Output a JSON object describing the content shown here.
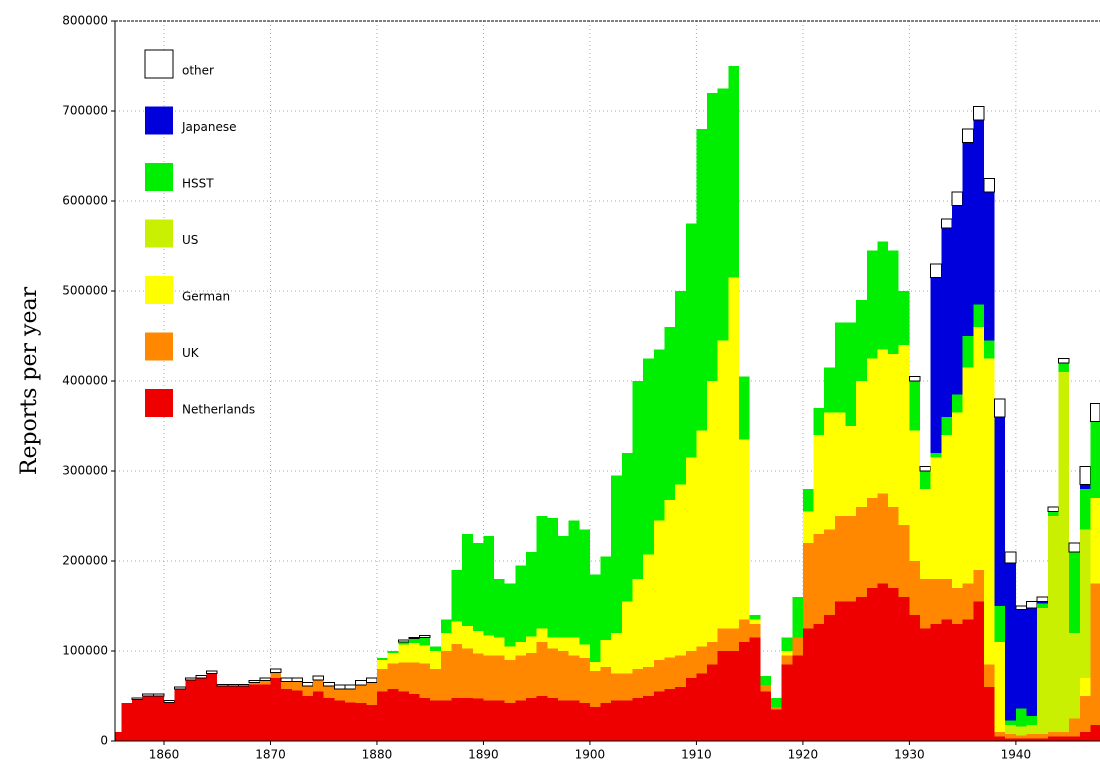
{
  "chart_data": {
    "type": "stacked-step-bar",
    "ylabel": "Reports per year",
    "xlim": [
      1855.4,
      1947.9
    ],
    "ylim": [
      0,
      800000
    ],
    "xticks": [
      1860,
      1870,
      1880,
      1890,
      1900,
      1910,
      1920,
      1930,
      1940
    ],
    "yticks": [
      0,
      100000,
      200000,
      300000,
      400000,
      500000,
      600000,
      700000,
      800000
    ],
    "grid": true,
    "legend": "upper left",
    "x": [
      1855,
      1856,
      1857,
      1858,
      1859,
      1860,
      1861,
      1862,
      1863,
      1864,
      1865,
      1866,
      1867,
      1868,
      1869,
      1870,
      1871,
      1872,
      1873,
      1874,
      1875,
      1876,
      1877,
      1878,
      1879,
      1880,
      1881,
      1882,
      1883,
      1884,
      1885,
      1886,
      1887,
      1888,
      1889,
      1890,
      1891,
      1892,
      1893,
      1894,
      1895,
      1896,
      1897,
      1898,
      1899,
      1900,
      1901,
      1902,
      1903,
      1904,
      1905,
      1906,
      1907,
      1908,
      1909,
      1910,
      1911,
      1912,
      1913,
      1914,
      1915,
      1916,
      1917,
      1918,
      1919,
      1920,
      1921,
      1922,
      1923,
      1924,
      1925,
      1926,
      1927,
      1928,
      1929,
      1930,
      1931,
      1932,
      1933,
      1934,
      1935,
      1936,
      1937,
      1938,
      1939,
      1940,
      1941,
      1942,
      1943,
      1944,
      1945,
      1946,
      1947
    ],
    "series": [
      {
        "name": "Netherlands",
        "color": "#ee0000",
        "values": [
          10000,
          42000,
          46000,
          50000,
          50000,
          43000,
          58000,
          68000,
          70000,
          75000,
          61000,
          61000,
          61000,
          63000,
          63000,
          70000,
          58000,
          56000,
          50000,
          55000,
          48000,
          45000,
          43000,
          42000,
          40000,
          55000,
          58000,
          55000,
          52000,
          48000,
          45000,
          45000,
          48000,
          48000,
          47000,
          45000,
          45000,
          42000,
          45000,
          48000,
          50000,
          48000,
          45000,
          45000,
          42000,
          38000,
          42000,
          45000,
          45000,
          48000,
          50000,
          55000,
          58000,
          60000,
          70000,
          75000,
          85000,
          100000,
          100000,
          110000,
          115000,
          55000,
          35000,
          85000,
          95000,
          125000,
          130000,
          140000,
          155000,
          155000,
          160000,
          170000,
          175000,
          170000,
          160000,
          140000,
          125000,
          130000,
          135000,
          130000,
          135000,
          155000,
          60000,
          5000,
          3000,
          3000,
          3000,
          3000,
          5000,
          5000,
          5000,
          10000,
          18000
        ]
      },
      {
        "name": "UK",
        "color": "#ff8800",
        "values": [
          0,
          0,
          0,
          0,
          0,
          0,
          0,
          0,
          0,
          0,
          0,
          0,
          0,
          2000,
          4000,
          6000,
          8000,
          10000,
          11000,
          13000,
          13000,
          13000,
          15000,
          20000,
          25000,
          25000,
          28000,
          32000,
          35000,
          38000,
          35000,
          55000,
          60000,
          55000,
          50000,
          50000,
          50000,
          48000,
          50000,
          50000,
          60000,
          55000,
          55000,
          50000,
          50000,
          40000,
          40000,
          30000,
          30000,
          32000,
          32000,
          35000,
          35000,
          35000,
          30000,
          30000,
          25000,
          25000,
          25000,
          25000,
          15000,
          7000,
          3000,
          10000,
          20000,
          95000,
          100000,
          95000,
          95000,
          95000,
          100000,
          100000,
          100000,
          90000,
          80000,
          60000,
          55000,
          50000,
          45000,
          40000,
          40000,
          35000,
          25000,
          5000,
          5000,
          3000,
          5000,
          5000,
          5000,
          5000,
          20000,
          40000,
          157000
        ]
      },
      {
        "name": "German",
        "color": "#ffff00",
        "values": [
          0,
          0,
          0,
          0,
          0,
          0,
          0,
          0,
          0,
          0,
          0,
          0,
          0,
          0,
          0,
          0,
          0,
          0,
          0,
          0,
          0,
          0,
          0,
          0,
          0,
          10000,
          12000,
          20000,
          22000,
          20000,
          20000,
          20000,
          25000,
          25000,
          25000,
          22000,
          20000,
          15000,
          15000,
          18000,
          15000,
          12000,
          15000,
          20000,
          15000,
          10000,
          30000,
          45000,
          80000,
          100000,
          125000,
          155000,
          175000,
          190000,
          215000,
          240000,
          290000,
          320000,
          390000,
          200000,
          5000,
          0,
          0,
          5000,
          0,
          35000,
          110000,
          130000,
          115000,
          100000,
          140000,
          155000,
          160000,
          170000,
          200000,
          145000,
          100000,
          135000,
          160000,
          195000,
          240000,
          270000,
          340000,
          100000,
          0,
          0,
          0,
          0,
          0,
          0,
          0,
          20000,
          95000
        ]
      },
      {
        "name": "US",
        "color": "#c8f000",
        "values": [
          0,
          0,
          0,
          0,
          0,
          0,
          0,
          0,
          0,
          0,
          0,
          0,
          0,
          0,
          0,
          0,
          0,
          0,
          0,
          0,
          0,
          0,
          0,
          0,
          0,
          0,
          0,
          0,
          0,
          0,
          0,
          0,
          0,
          0,
          0,
          0,
          0,
          0,
          0,
          0,
          0,
          0,
          0,
          0,
          0,
          0,
          0,
          0,
          0,
          0,
          0,
          0,
          0,
          0,
          0,
          0,
          0,
          0,
          0,
          0,
          0,
          0,
          0,
          0,
          0,
          0,
          0,
          0,
          0,
          0,
          0,
          0,
          0,
          0,
          0,
          0,
          0,
          0,
          0,
          0,
          0,
          0,
          0,
          0,
          10000,
          10000,
          10000,
          140000,
          240000,
          400000,
          95000,
          165000,
          0
        ]
      },
      {
        "name": "HSST",
        "color": "#00ee00",
        "values": [
          0,
          0,
          0,
          0,
          0,
          0,
          0,
          0,
          0,
          0,
          0,
          0,
          0,
          0,
          0,
          0,
          0,
          0,
          0,
          0,
          0,
          0,
          0,
          0,
          0,
          2000,
          2000,
          3000,
          5000,
          9000,
          5000,
          15000,
          57000,
          102000,
          98000,
          111000,
          65000,
          70000,
          85000,
          94000,
          125000,
          133000,
          113000,
          130000,
          128000,
          97000,
          93000,
          175000,
          165000,
          220000,
          218000,
          190000,
          192000,
          215000,
          260000,
          335000,
          320000,
          280000,
          235000,
          70000,
          5000,
          10000,
          10000,
          15000,
          45000,
          25000,
          30000,
          50000,
          100000,
          115000,
          90000,
          120000,
          120000,
          115000,
          60000,
          55000,
          20000,
          5000,
          20000,
          20000,
          35000,
          25000,
          20000,
          40000,
          5000,
          20000,
          10000,
          5000,
          5000,
          10000,
          90000,
          45000,
          85000
        ]
      },
      {
        "name": "Japanese",
        "color": "#0000dd",
        "values": [
          0,
          0,
          0,
          0,
          0,
          0,
          0,
          0,
          0,
          0,
          0,
          0,
          0,
          0,
          0,
          0,
          0,
          0,
          0,
          0,
          0,
          0,
          0,
          0,
          0,
          0,
          0,
          0,
          0,
          0,
          0,
          0,
          0,
          0,
          0,
          0,
          0,
          0,
          0,
          0,
          0,
          0,
          0,
          0,
          0,
          0,
          0,
          0,
          0,
          0,
          0,
          0,
          0,
          0,
          0,
          0,
          0,
          0,
          0,
          0,
          0,
          0,
          0,
          0,
          0,
          0,
          0,
          0,
          0,
          0,
          0,
          0,
          0,
          0,
          0,
          0,
          0,
          195000,
          210000,
          210000,
          215000,
          205000,
          165000,
          210000,
          175000,
          110000,
          120000,
          2000,
          0,
          0,
          0,
          5000,
          0
        ]
      },
      {
        "name": "other",
        "color": "#ffffff",
        "values": [
          0,
          0,
          2000,
          2000,
          2000,
          2000,
          2000,
          2000,
          3000,
          3000,
          2000,
          2000,
          2000,
          2000,
          3000,
          4000,
          4000,
          4000,
          4000,
          4000,
          4000,
          4000,
          4000,
          5000,
          5000,
          0,
          0,
          2000,
          1000,
          2000,
          0,
          0,
          0,
          0,
          0,
          0,
          0,
          0,
          0,
          0,
          0,
          0,
          0,
          0,
          0,
          0,
          0,
          0,
          0,
          0,
          0,
          0,
          0,
          0,
          0,
          0,
          0,
          0,
          0,
          0,
          0,
          0,
          0,
          0,
          0,
          0,
          0,
          0,
          0,
          0,
          0,
          0,
          0,
          0,
          0,
          5000,
          5000,
          15000,
          10000,
          15000,
          15000,
          15000,
          15000,
          20000,
          12000,
          4000,
          7000,
          5000,
          5000,
          5000,
          10000,
          20000,
          20000
        ]
      }
    ]
  }
}
